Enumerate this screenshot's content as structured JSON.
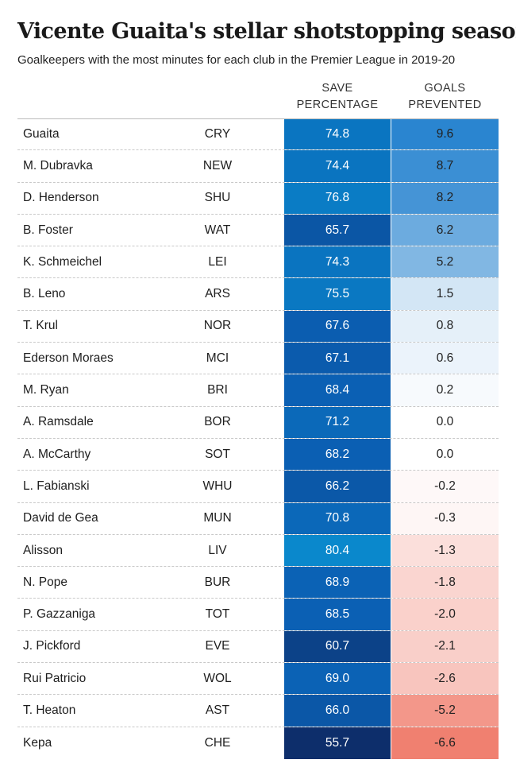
{
  "title": "Vicente Guaita's stellar shotstopping season",
  "subtitle": "Goalkeepers with the most minutes for each club in the Premier League in 2019-20",
  "columns": {
    "save_line1": "SAVE",
    "save_line2": "PERCENTAGE",
    "goals_line1": "GOALS",
    "goals_line2": "PREVENTED"
  },
  "colors": {
    "save_scale": [
      "#0d2e6b",
      "#0b5fb3",
      "#0a88cc"
    ],
    "goals_positive": "#2a85d0",
    "goals_neutral": "#ffffff",
    "goals_negative": "#f08070"
  },
  "chart_data": {
    "type": "table",
    "title": "Vicente Guaita's stellar shotstopping season",
    "subtitle": "Goalkeepers with the most minutes for each club in the Premier League in 2019-20",
    "columns": [
      "",
      "",
      "SAVE PERCENTAGE",
      "GOALS PREVENTED"
    ],
    "rows": [
      {
        "name": "Guaita",
        "club": "CRY",
        "save": "74.8",
        "goals": "9.6"
      },
      {
        "name": "M. Dubravka",
        "club": "NEW",
        "save": "74.4",
        "goals": "8.7"
      },
      {
        "name": "D. Henderson",
        "club": "SHU",
        "save": "76.8",
        "goals": "8.2"
      },
      {
        "name": "B. Foster",
        "club": "WAT",
        "save": "65.7",
        "goals": "6.2"
      },
      {
        "name": "K. Schmeichel",
        "club": "LEI",
        "save": "74.3",
        "goals": "5.2"
      },
      {
        "name": "B. Leno",
        "club": "ARS",
        "save": "75.5",
        "goals": "1.5"
      },
      {
        "name": "T. Krul",
        "club": "NOR",
        "save": "67.6",
        "goals": "0.8"
      },
      {
        "name": "Ederson Moraes",
        "club": "MCI",
        "save": "67.1",
        "goals": "0.6"
      },
      {
        "name": "M. Ryan",
        "club": "BRI",
        "save": "68.4",
        "goals": "0.2"
      },
      {
        "name": "A. Ramsdale",
        "club": "BOR",
        "save": "71.2",
        "goals": "0.0"
      },
      {
        "name": "A. McCarthy",
        "club": "SOT",
        "save": "68.2",
        "goals": "0.0"
      },
      {
        "name": "L. Fabianski",
        "club": "WHU",
        "save": "66.2",
        "goals": "-0.2"
      },
      {
        "name": "David de Gea",
        "club": "MUN",
        "save": "70.8",
        "goals": "-0.3"
      },
      {
        "name": "Alisson",
        "club": "LIV",
        "save": "80.4",
        "goals": "-1.3"
      },
      {
        "name": "N. Pope",
        "club": "BUR",
        "save": "68.9",
        "goals": "-1.8"
      },
      {
        "name": "P. Gazzaniga",
        "club": "TOT",
        "save": "68.5",
        "goals": "-2.0"
      },
      {
        "name": "J. Pickford",
        "club": "EVE",
        "save": "60.7",
        "goals": "-2.1"
      },
      {
        "name": "Rui Patricio",
        "club": "WOL",
        "save": "69.0",
        "goals": "-2.6"
      },
      {
        "name": "T. Heaton",
        "club": "AST",
        "save": "66.0",
        "goals": "-5.2"
      },
      {
        "name": "Kepa",
        "club": "CHE",
        "save": "55.7",
        "goals": "-6.6"
      }
    ]
  }
}
